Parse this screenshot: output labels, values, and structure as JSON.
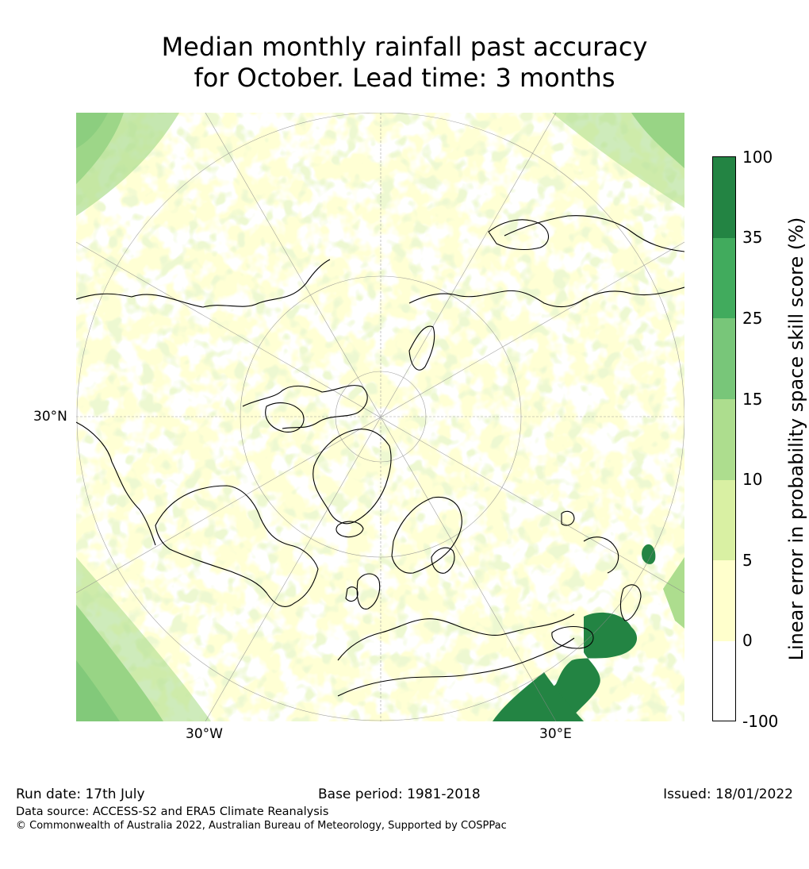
{
  "title": {
    "line1": "Median monthly rainfall past accuracy",
    "line2": "for October. Lead time: 3 months"
  },
  "map": {
    "projection": "north-polar-stereographic",
    "latitude_label": "30°N",
    "longitude_labels": [
      "30°W",
      "30°E"
    ]
  },
  "colorbar": {
    "label": "Linear error in probability space skill score (%)",
    "ticks": [
      "100",
      "35",
      "25",
      "15",
      "10",
      "5",
      "0",
      "-100"
    ],
    "bins": [
      {
        "range": "-100–0",
        "color": "#ffffff"
      },
      {
        "range": "0–5",
        "color": "#ffffcc"
      },
      {
        "range": "5–10",
        "color": "#d9f0a3"
      },
      {
        "range": "10–15",
        "color": "#addd8e"
      },
      {
        "range": "15–25",
        "color": "#78c679"
      },
      {
        "range": "25–35",
        "color": "#41ab5d"
      },
      {
        "range": "35–100",
        "color": "#238443"
      }
    ]
  },
  "footer": {
    "run_date": "Run date: 17th July",
    "base_period": "Base period: 1981-2018",
    "issued": "Issued: 18/01/2022",
    "data_source": "Data source: ACCESS-S2 and ERA5 Climate Reanalysis",
    "copyright": "© Commonwealth of Australia 2022, Australian Bureau of Meteorology, Supported by COSPPac"
  }
}
